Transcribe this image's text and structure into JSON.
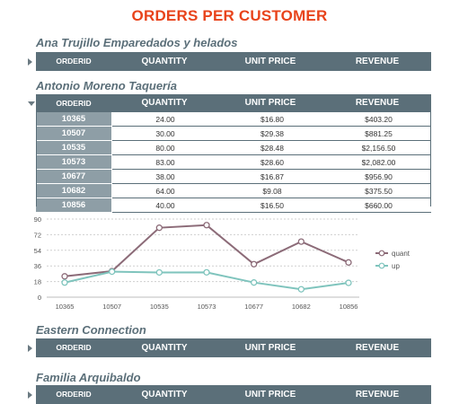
{
  "report": {
    "title": "ORDERS PER CUSTOMER"
  },
  "columns": {
    "orderid": "ORDERID",
    "quantity": "QUANTITY",
    "unit_price": "UNIT PRICE",
    "revenue": "REVENUE"
  },
  "groups": [
    {
      "name": "Ana Trujillo Emparedados y helados",
      "expanded": false
    },
    {
      "name": "Antonio Moreno Taquería",
      "expanded": true
    },
    {
      "name": "Eastern Connection",
      "expanded": false
    },
    {
      "name": "Familia Arquibaldo",
      "expanded": false
    }
  ],
  "orders": [
    {
      "orderid": "10365",
      "quantity": "24.00",
      "unit_price": "$16.80",
      "revenue": "$403.20"
    },
    {
      "orderid": "10507",
      "quantity": "30.00",
      "unit_price": "$29.38",
      "revenue": "$881.25"
    },
    {
      "orderid": "10535",
      "quantity": "80.00",
      "unit_price": "$28.48",
      "revenue": "$2,156.50"
    },
    {
      "orderid": "10573",
      "quantity": "83.00",
      "unit_price": "$28.60",
      "revenue": "$2,082.00"
    },
    {
      "orderid": "10677",
      "quantity": "38.00",
      "unit_price": "$16.87",
      "revenue": "$956.90"
    },
    {
      "orderid": "10682",
      "quantity": "64.00",
      "unit_price": "$9.08",
      "revenue": "$375.50"
    },
    {
      "orderid": "10856",
      "quantity": "40.00",
      "unit_price": "$16.50",
      "revenue": "$660.00"
    }
  ],
  "chart_data": {
    "type": "line",
    "categories": [
      "10365",
      "10507",
      "10535",
      "10573",
      "10677",
      "10682",
      "10856"
    ],
    "series": [
      {
        "name": "quant",
        "color": "#8c6b78",
        "values": [
          24,
          30,
          80,
          83,
          38,
          64,
          40
        ]
      },
      {
        "name": "up",
        "color": "#7fc4bd",
        "values": [
          16.8,
          29.38,
          28.48,
          28.6,
          16.87,
          9.08,
          16.5
        ]
      }
    ],
    "yticks": [
      "0",
      "18",
      "36",
      "54",
      "72",
      "90"
    ],
    "ylim": [
      0,
      90
    ],
    "grid": true,
    "legend_position": "right"
  }
}
